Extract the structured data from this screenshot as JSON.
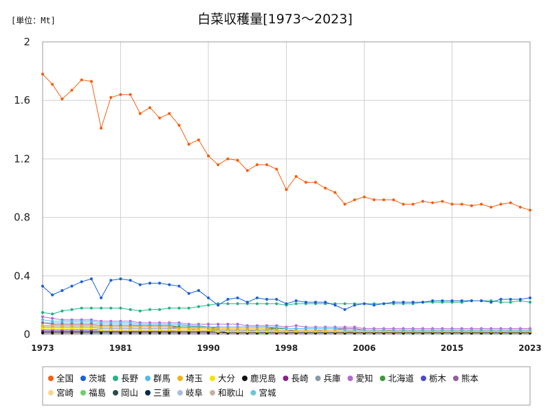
{
  "chart_data": {
    "type": "line",
    "title": "白菜収穫量[1973〜2023]",
    "unit_label": "[単位：Mt]",
    "xlabel": "",
    "ylabel": "",
    "xlim": [
      1973,
      2023
    ],
    "ylim": [
      0,
      2
    ],
    "yticks": [
      "0",
      "0.4",
      "0.8",
      "1.2",
      "1.6",
      "2"
    ],
    "xticks": [
      "1973",
      "1981",
      "1990",
      "1998",
      "2006",
      "2015",
      "2023"
    ],
    "grid": true,
    "legend_position": "bottom",
    "x": [
      1973,
      1974,
      1975,
      1976,
      1977,
      1978,
      1979,
      1980,
      1981,
      1982,
      1983,
      1984,
      1985,
      1986,
      1987,
      1988,
      1989,
      1990,
      1991,
      1992,
      1993,
      1994,
      1995,
      1996,
      1997,
      1998,
      1999,
      2000,
      2001,
      2002,
      2003,
      2004,
      2005,
      2006,
      2007,
      2008,
      2009,
      2010,
      2011,
      2012,
      2013,
      2014,
      2015,
      2016,
      2017,
      2018,
      2019,
      2020,
      2021,
      2022,
      2023
    ],
    "series": [
      {
        "name": "全国",
        "color": "#f4600f",
        "values": [
          1.78,
          1.71,
          1.61,
          1.67,
          1.74,
          1.73,
          1.41,
          1.62,
          1.64,
          1.64,
          1.51,
          1.55,
          1.48,
          1.51,
          1.43,
          1.3,
          1.33,
          1.22,
          1.16,
          1.2,
          1.19,
          1.12,
          1.16,
          1.16,
          1.13,
          0.99,
          1.08,
          1.04,
          1.04,
          1.0,
          0.97,
          0.89,
          0.92,
          0.94,
          0.92,
          0.92,
          0.92,
          0.89,
          0.89,
          0.91,
          0.9,
          0.91,
          0.89,
          0.89,
          0.88,
          0.89,
          0.87,
          0.89,
          0.9,
          0.87,
          0.85
        ]
      },
      {
        "name": "茨城",
        "color": "#1a60d6",
        "values": [
          0.33,
          0.27,
          0.3,
          0.33,
          0.36,
          0.38,
          0.25,
          0.37,
          0.38,
          0.37,
          0.34,
          0.35,
          0.35,
          0.34,
          0.33,
          0.28,
          0.3,
          0.25,
          0.2,
          0.24,
          0.25,
          0.22,
          0.25,
          0.24,
          0.24,
          0.21,
          0.23,
          0.22,
          0.22,
          0.22,
          0.2,
          0.17,
          0.2,
          0.21,
          0.2,
          0.21,
          0.22,
          0.22,
          0.22,
          0.22,
          0.23,
          0.23,
          0.23,
          0.23,
          0.23,
          0.23,
          0.22,
          0.24,
          0.24,
          0.24,
          0.25
        ]
      },
      {
        "name": "長野",
        "color": "#20b486",
        "values": [
          0.15,
          0.14,
          0.16,
          0.17,
          0.18,
          0.18,
          0.18,
          0.18,
          0.18,
          0.17,
          0.16,
          0.17,
          0.17,
          0.18,
          0.18,
          0.18,
          0.19,
          0.2,
          0.21,
          0.21,
          0.21,
          0.21,
          0.21,
          0.21,
          0.21,
          0.2,
          0.21,
          0.21,
          0.21,
          0.21,
          0.21,
          0.21,
          0.21,
          0.21,
          0.21,
          0.21,
          0.21,
          0.21,
          0.21,
          0.22,
          0.22,
          0.22,
          0.22,
          0.22,
          0.23,
          0.23,
          0.23,
          0.22,
          0.22,
          0.23,
          0.22
        ]
      },
      {
        "name": "群馬",
        "color": "#56b9ea",
        "values": [
          0.1,
          0.09,
          0.09,
          0.09,
          0.09,
          0.09,
          0.08,
          0.08,
          0.08,
          0.08,
          0.07,
          0.07,
          0.07,
          0.07,
          0.07,
          0.06,
          0.06,
          0.05,
          0.05,
          0.05,
          0.05,
          0.05,
          0.05,
          0.05,
          0.05,
          0.04,
          0.04,
          0.04,
          0.04,
          0.04,
          0.04,
          0.03,
          0.03,
          0.03,
          0.03,
          0.03,
          0.03,
          0.03,
          0.03,
          0.03,
          0.03,
          0.03,
          0.03,
          0.03,
          0.03,
          0.03,
          0.03,
          0.03,
          0.03,
          0.03,
          0.03
        ]
      },
      {
        "name": "埼玉",
        "color": "#f3b21a",
        "values": [
          0.06,
          0.06,
          0.06,
          0.06,
          0.06,
          0.06,
          0.05,
          0.05,
          0.05,
          0.05,
          0.05,
          0.05,
          0.05,
          0.05,
          0.04,
          0.04,
          0.04,
          0.04,
          0.04,
          0.04,
          0.04,
          0.04,
          0.04,
          0.04,
          0.03,
          0.03,
          0.03,
          0.03,
          0.03,
          0.03,
          0.03,
          0.03,
          0.03,
          0.03,
          0.03,
          0.03,
          0.02,
          0.02,
          0.02,
          0.02,
          0.02,
          0.02,
          0.02,
          0.02,
          0.02,
          0.02,
          0.02,
          0.02,
          0.02,
          0.02,
          0.02
        ]
      },
      {
        "name": "大分",
        "color": "#f0e400",
        "values": [
          0.04,
          0.04,
          0.04,
          0.04,
          0.04,
          0.04,
          0.03,
          0.03,
          0.03,
          0.03,
          0.03,
          0.03,
          0.03,
          0.03,
          0.03,
          0.03,
          0.03,
          0.03,
          0.02,
          0.02,
          0.02,
          0.02,
          0.02,
          0.02,
          0.02,
          0.02,
          0.02,
          0.02,
          0.02,
          0.02,
          0.02,
          0.02,
          0.02,
          0.02,
          0.02,
          0.02,
          0.02,
          0.02,
          0.02,
          0.02,
          0.02,
          0.02,
          0.02,
          0.02,
          0.02,
          0.02,
          0.02,
          0.02,
          0.02,
          0.02,
          0.02
        ]
      },
      {
        "name": "鹿児島",
        "color": "#111111",
        "values": [
          0.01,
          0.01,
          0.01,
          0.01,
          0.01,
          0.01,
          0.01,
          0.01,
          0.01,
          0.01,
          0.01,
          0.01,
          0.01,
          0.01,
          0.01,
          0.01,
          0.01,
          0.01,
          0.01,
          0.01,
          0.01,
          0.01,
          0.01,
          0.01,
          0.01,
          0.01,
          0.01,
          0.01,
          0.01,
          0.01,
          0.01,
          0.01,
          0.01,
          0.01,
          0.01,
          0.01,
          0.01,
          0.01,
          0.01,
          0.01,
          0.01,
          0.01,
          0.01,
          0.01,
          0.01,
          0.01,
          0.01,
          0.01,
          0.01,
          0.01,
          0.01
        ]
      },
      {
        "name": "長崎",
        "color": "#8a1e8a",
        "values": [
          0.02,
          0.02,
          0.02,
          0.02,
          0.02,
          0.02,
          0.02,
          0.02,
          0.02,
          0.02,
          0.02,
          0.02,
          0.02,
          0.02,
          0.02,
          0.02,
          0.02,
          0.02,
          0.02,
          0.02,
          0.02,
          0.02,
          0.02,
          0.02,
          0.02,
          0.02,
          0.02,
          0.02,
          0.02,
          0.02,
          0.02,
          0.02,
          0.02,
          0.02,
          0.02,
          0.02,
          0.02,
          0.02,
          0.02,
          0.02,
          0.02,
          0.02,
          0.02,
          0.02,
          0.02,
          0.02,
          0.02,
          0.02,
          0.02,
          0.02,
          0.02
        ]
      },
      {
        "name": "兵庫",
        "color": "#8a9aa8",
        "values": [
          0.05,
          0.05,
          0.05,
          0.05,
          0.05,
          0.05,
          0.04,
          0.04,
          0.04,
          0.04,
          0.04,
          0.04,
          0.04,
          0.04,
          0.04,
          0.04,
          0.03,
          0.03,
          0.03,
          0.03,
          0.03,
          0.03,
          0.03,
          0.03,
          0.03,
          0.03,
          0.03,
          0.03,
          0.03,
          0.02,
          0.02,
          0.02,
          0.02,
          0.02,
          0.02,
          0.02,
          0.02,
          0.02,
          0.02,
          0.02,
          0.02,
          0.02,
          0.02,
          0.02,
          0.02,
          0.02,
          0.02,
          0.02,
          0.02,
          0.02,
          0.02
        ]
      },
      {
        "name": "愛知",
        "color": "#b36ad6",
        "values": [
          0.12,
          0.11,
          0.1,
          0.1,
          0.1,
          0.1,
          0.09,
          0.09,
          0.09,
          0.09,
          0.08,
          0.08,
          0.08,
          0.08,
          0.08,
          0.07,
          0.07,
          0.07,
          0.07,
          0.07,
          0.07,
          0.06,
          0.06,
          0.06,
          0.06,
          0.05,
          0.06,
          0.05,
          0.05,
          0.05,
          0.05,
          0.05,
          0.05,
          0.04,
          0.04,
          0.04,
          0.04,
          0.04,
          0.04,
          0.04,
          0.04,
          0.04,
          0.04,
          0.04,
          0.04,
          0.04,
          0.04,
          0.04,
          0.04,
          0.04,
          0.04
        ]
      },
      {
        "name": "北海道",
        "color": "#3a9a3a",
        "values": [
          0.06,
          0.06,
          0.06,
          0.06,
          0.06,
          0.06,
          0.05,
          0.05,
          0.05,
          0.05,
          0.05,
          0.05,
          0.05,
          0.05,
          0.05,
          0.05,
          0.05,
          0.05,
          0.04,
          0.04,
          0.04,
          0.04,
          0.04,
          0.04,
          0.04,
          0.04,
          0.04,
          0.04,
          0.04,
          0.04,
          0.04,
          0.03,
          0.03,
          0.03,
          0.03,
          0.03,
          0.03,
          0.03,
          0.03,
          0.03,
          0.03,
          0.03,
          0.03,
          0.03,
          0.03,
          0.03,
          0.03,
          0.03,
          0.03,
          0.03,
          0.03
        ]
      },
      {
        "name": "栃木",
        "color": "#4a4ad0",
        "values": [
          0.03,
          0.03,
          0.03,
          0.03,
          0.03,
          0.03,
          0.03,
          0.03,
          0.03,
          0.03,
          0.03,
          0.03,
          0.03,
          0.03,
          0.03,
          0.03,
          0.03,
          0.03,
          0.03,
          0.03,
          0.03,
          0.03,
          0.03,
          0.03,
          0.03,
          0.03,
          0.02,
          0.02,
          0.02,
          0.02,
          0.02,
          0.02,
          0.02,
          0.02,
          0.02,
          0.02,
          0.02,
          0.02,
          0.02,
          0.02,
          0.02,
          0.02,
          0.02,
          0.02,
          0.02,
          0.02,
          0.02,
          0.02,
          0.02,
          0.02,
          0.02
        ]
      },
      {
        "name": "熊本",
        "color": "#9a5aa0",
        "values": [
          0.08,
          0.07,
          0.07,
          0.07,
          0.07,
          0.07,
          0.06,
          0.06,
          0.06,
          0.06,
          0.06,
          0.06,
          0.06,
          0.06,
          0.05,
          0.05,
          0.05,
          0.05,
          0.05,
          0.05,
          0.05,
          0.05,
          0.05,
          0.05,
          0.04,
          0.04,
          0.04,
          0.04,
          0.04,
          0.04,
          0.04,
          0.04,
          0.04,
          0.03,
          0.03,
          0.03,
          0.03,
          0.03,
          0.03,
          0.03,
          0.03,
          0.03,
          0.03,
          0.03,
          0.03,
          0.03,
          0.03,
          0.03,
          0.03,
          0.03,
          0.03
        ]
      },
      {
        "name": "宮崎",
        "color": "#f6d98a",
        "values": [
          0.03,
          0.03,
          0.03,
          0.03,
          0.03,
          0.03,
          0.03,
          0.03,
          0.03,
          0.03,
          0.03,
          0.03,
          0.03,
          0.03,
          0.02,
          0.02,
          0.02,
          0.02,
          0.02,
          0.02,
          0.02,
          0.02,
          0.02,
          0.02,
          0.02,
          0.02,
          0.02,
          0.02,
          0.02,
          0.02,
          0.02,
          0.02,
          0.02,
          0.02,
          0.02,
          0.02,
          0.02,
          0.02,
          0.02,
          0.02,
          0.02,
          0.02,
          0.02,
          0.02,
          0.02,
          0.02,
          0.02,
          0.02,
          0.02,
          0.02,
          0.02
        ]
      },
      {
        "name": "福島",
        "color": "#6ccf6c",
        "values": [
          0.05,
          0.05,
          0.05,
          0.05,
          0.05,
          0.05,
          0.04,
          0.04,
          0.04,
          0.04,
          0.04,
          0.04,
          0.04,
          0.04,
          0.04,
          0.04,
          0.04,
          0.04,
          0.03,
          0.03,
          0.03,
          0.03,
          0.03,
          0.03,
          0.03,
          0.03,
          0.03,
          0.03,
          0.03,
          0.03,
          0.03,
          0.03,
          0.03,
          0.03,
          0.03,
          0.03,
          0.03,
          0.03,
          0.03,
          0.03,
          0.03,
          0.03,
          0.03,
          0.03,
          0.03,
          0.03,
          0.03,
          0.03,
          0.03,
          0.03,
          0.03
        ]
      },
      {
        "name": "岡山",
        "color": "#2a4a4a",
        "values": [
          0.02,
          0.02,
          0.02,
          0.02,
          0.02,
          0.02,
          0.02,
          0.02,
          0.02,
          0.02,
          0.02,
          0.02,
          0.02,
          0.02,
          0.02,
          0.02,
          0.02,
          0.02,
          0.02,
          0.02,
          0.02,
          0.02,
          0.02,
          0.02,
          0.02,
          0.02,
          0.02,
          0.02,
          0.02,
          0.02,
          0.02,
          0.02,
          0.02,
          0.02,
          0.02,
          0.02,
          0.02,
          0.02,
          0.02,
          0.02,
          0.02,
          0.02,
          0.02,
          0.02,
          0.02,
          0.02,
          0.02,
          0.02,
          0.02,
          0.02,
          0.02
        ]
      },
      {
        "name": "三重",
        "color": "#0a2a4a",
        "values": [
          0.02,
          0.02,
          0.02,
          0.02,
          0.02,
          0.02,
          0.02,
          0.02,
          0.02,
          0.02,
          0.02,
          0.02,
          0.02,
          0.02,
          0.02,
          0.02,
          0.02,
          0.02,
          0.02,
          0.01,
          0.01,
          0.01,
          0.01,
          0.01,
          0.01,
          0.01,
          0.01,
          0.01,
          0.01,
          0.01,
          0.01,
          0.01,
          0.01,
          0.01,
          0.01,
          0.01,
          0.01,
          0.01,
          0.01,
          0.01,
          0.01,
          0.01,
          0.01,
          0.01,
          0.01,
          0.01,
          0.01,
          0.01,
          0.01,
          0.01,
          0.01
        ]
      },
      {
        "name": "岐阜",
        "color": "#a8bce0",
        "values": [
          0.03,
          0.03,
          0.03,
          0.03,
          0.03,
          0.03,
          0.03,
          0.03,
          0.03,
          0.03,
          0.03,
          0.03,
          0.03,
          0.03,
          0.03,
          0.03,
          0.03,
          0.03,
          0.03,
          0.03,
          0.03,
          0.03,
          0.02,
          0.02,
          0.02,
          0.02,
          0.02,
          0.02,
          0.02,
          0.02,
          0.02,
          0.02,
          0.02,
          0.02,
          0.02,
          0.02,
          0.02,
          0.02,
          0.02,
          0.02,
          0.02,
          0.02,
          0.02,
          0.02,
          0.02,
          0.02,
          0.02,
          0.02,
          0.02,
          0.02,
          0.02
        ]
      },
      {
        "name": "和歌山",
        "color": "#c8b0a0",
        "values": [
          0.02,
          0.02,
          0.02,
          0.02,
          0.02,
          0.02,
          0.02,
          0.02,
          0.02,
          0.02,
          0.02,
          0.02,
          0.02,
          0.02,
          0.02,
          0.02,
          0.02,
          0.02,
          0.02,
          0.02,
          0.02,
          0.02,
          0.02,
          0.02,
          0.02,
          0.02,
          0.02,
          0.02,
          0.02,
          0.02,
          0.02,
          0.02,
          0.01,
          0.01,
          0.01,
          0.01,
          0.01,
          0.01,
          0.01,
          0.01,
          0.01,
          0.01,
          0.01,
          0.01,
          0.01,
          0.01,
          0.01,
          0.01,
          0.01,
          0.01,
          0.01
        ]
      },
      {
        "name": "宮城",
        "color": "#6ac8d8",
        "values": [
          0.08,
          0.08,
          0.08,
          0.08,
          0.08,
          0.08,
          0.07,
          0.07,
          0.07,
          0.07,
          0.06,
          0.06,
          0.06,
          0.06,
          0.06,
          0.06,
          0.05,
          0.05,
          0.05,
          0.05,
          0.05,
          0.05,
          0.05,
          0.05,
          0.04,
          0.04,
          0.04,
          0.04,
          0.04,
          0.04,
          0.04,
          0.04,
          0.04,
          0.03,
          0.03,
          0.03,
          0.03,
          0.03,
          0.03,
          0.03,
          0.03,
          0.03,
          0.03,
          0.03,
          0.03,
          0.03,
          0.03,
          0.03,
          0.03,
          0.03,
          0.03
        ]
      }
    ]
  }
}
